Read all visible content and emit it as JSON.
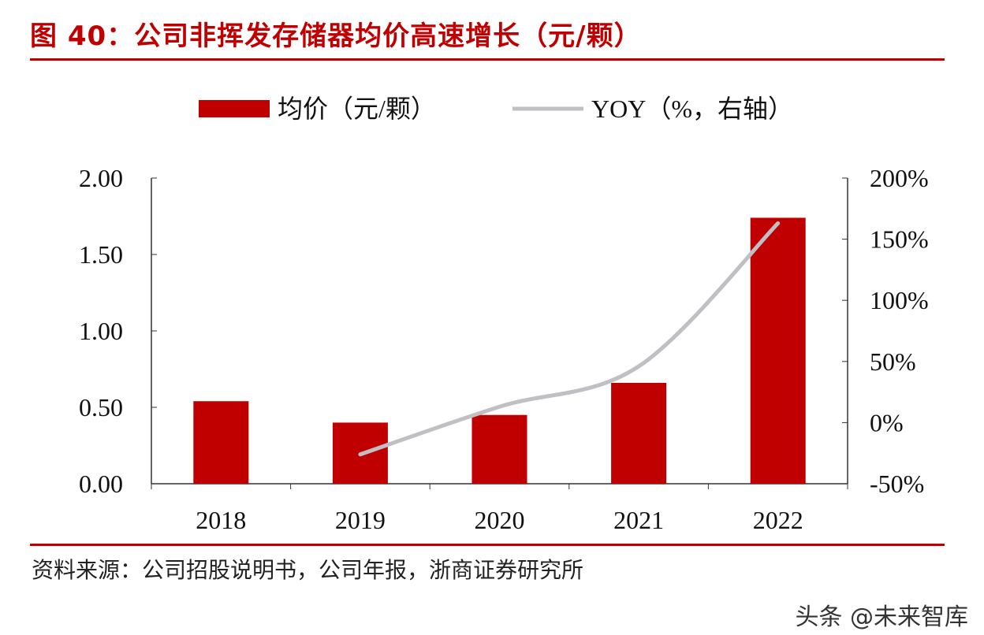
{
  "title": "图 40：公司非挥发存储器均价高速增长（元/颗）",
  "source": "资料来源：公司招股说明书，公司年报，浙商证券研究所",
  "watermark": "头条 @未来智库",
  "colors": {
    "bar": "#c00000",
    "line": "#c0c0c4",
    "accent": "#c00000"
  },
  "chart_data": {
    "type": "bar",
    "categories": [
      "2018",
      "2019",
      "2020",
      "2021",
      "2022"
    ],
    "series": [
      {
        "name": "均价（元/颗）",
        "type": "bar",
        "axis": "left",
        "values": [
          0.54,
          0.4,
          0.45,
          0.66,
          1.74
        ]
      },
      {
        "name": "YOY（%，右轴）",
        "type": "line",
        "axis": "right",
        "values": [
          null,
          -26,
          13,
          46,
          163
        ]
      }
    ],
    "left_axis": {
      "ylim": [
        0,
        2
      ],
      "ticks": [
        "0.00",
        "0.50",
        "1.00",
        "1.50",
        "2.00"
      ]
    },
    "right_axis": {
      "ylim": [
        -50,
        200
      ],
      "ticks": [
        "-50%",
        "0%",
        "50%",
        "100%",
        "150%",
        "200%"
      ]
    },
    "legend": "top-center",
    "grid": false
  }
}
